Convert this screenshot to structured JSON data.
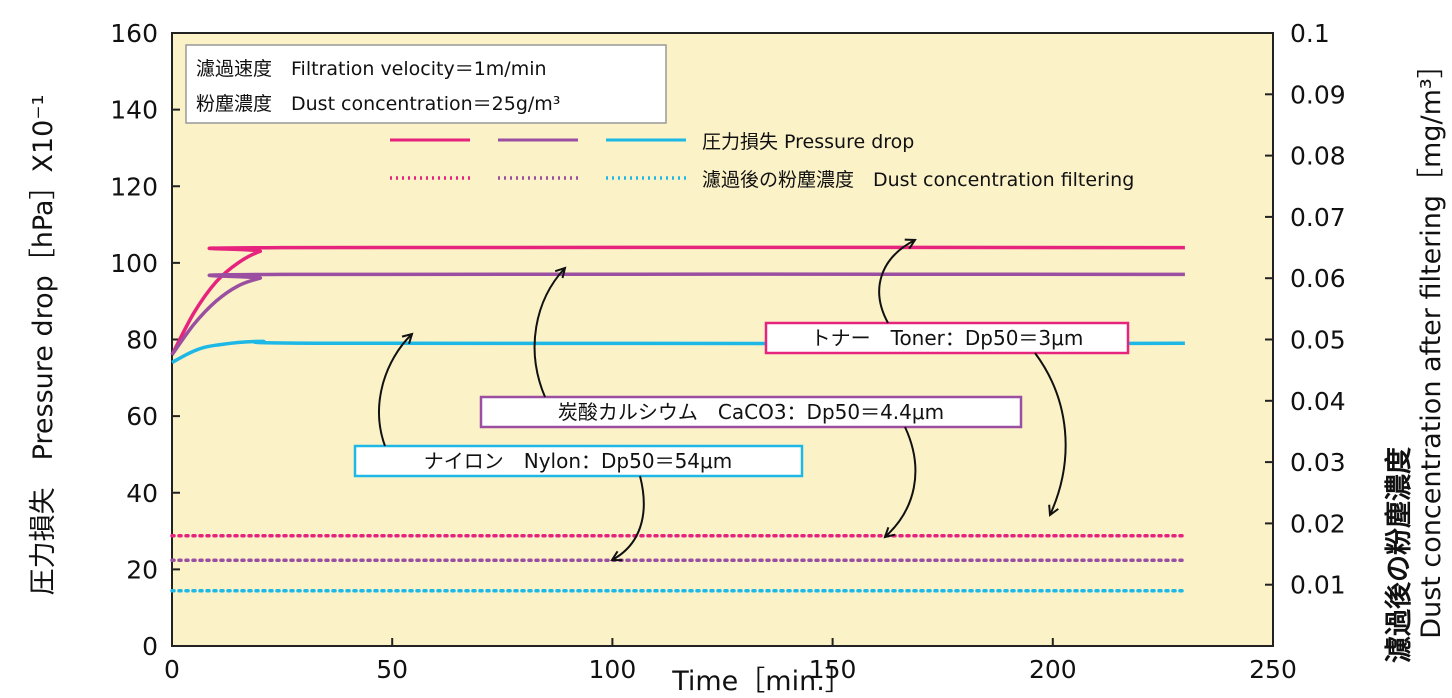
{
  "chart_data": {
    "type": "line",
    "xlabel": "Time［min.］",
    "ylabel_left": "圧力損失　Pressure drop［hPa］X10⁻¹",
    "ylabel_right_line1": "濾過後の粉塵濃度",
    "ylabel_right_line2": "Dust concentration after filtering［mg/m³］",
    "xlim": [
      0,
      250
    ],
    "ylim_left": [
      0,
      160
    ],
    "ylim_right": [
      0,
      0.1
    ],
    "xticks": [
      "0",
      "50",
      "100",
      "150",
      "200",
      "250"
    ],
    "yticks_left": [
      "0",
      "20",
      "40",
      "60",
      "80",
      "100",
      "120",
      "140",
      "160"
    ],
    "yticks_right": [
      "0.01",
      "0.02",
      "0.03",
      "0.04",
      "0.05",
      "0.06",
      "0.07",
      "0.08",
      "0.09",
      "0.1"
    ],
    "background": "#fbf2c8",
    "conditions": {
      "line1": "濾過速度　Filtration velocity＝1m/min",
      "line2": "粉塵濃度　Dust concentration＝25g/m³"
    },
    "legend": {
      "pressure_label": "圧力損失 Pressure drop",
      "dust_label": "濾過後の粉塵濃度　Dust concentration filtering"
    },
    "series": [
      {
        "label": "トナー　Toner：Dp50＝3μm",
        "color": "#e6237d",
        "pressure_drop": [
          [
            0,
            76
          ],
          [
            5,
            87
          ],
          [
            10,
            95
          ],
          [
            15,
            100
          ],
          [
            20,
            103
          ],
          [
            25,
            104
          ],
          [
            230,
            104
          ]
        ],
        "dust_concentration": [
          [
            0,
            0.018
          ],
          [
            230,
            0.018
          ]
        ]
      },
      {
        "label": "炭酸カルシウム　CaCO3：Dp50＝4.4μm",
        "color": "#9b4fa0",
        "pressure_drop": [
          [
            0,
            76
          ],
          [
            5,
            84
          ],
          [
            10,
            90
          ],
          [
            15,
            94
          ],
          [
            20,
            96
          ],
          [
            25,
            97
          ],
          [
            230,
            97
          ]
        ],
        "dust_concentration": [
          [
            0,
            0.014
          ],
          [
            230,
            0.014
          ]
        ]
      },
      {
        "label": "ナイロン　Nylon：Dp50＝54μm",
        "color": "#1eb8e6",
        "pressure_drop": [
          [
            0,
            74
          ],
          [
            5,
            77
          ],
          [
            10,
            78.5
          ],
          [
            20,
            79.5
          ],
          [
            40,
            79
          ],
          [
            230,
            79
          ]
        ],
        "dust_concentration": [
          [
            0,
            0.009
          ],
          [
            230,
            0.009
          ]
        ]
      }
    ]
  }
}
